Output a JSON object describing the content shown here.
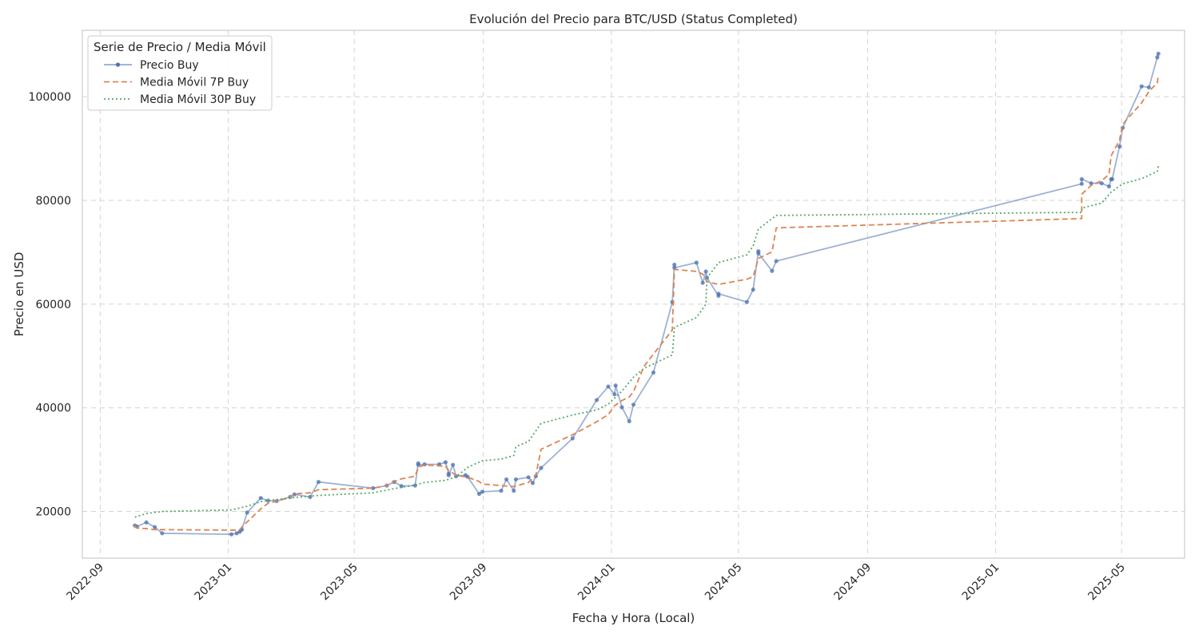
{
  "chart_data": {
    "type": "line",
    "title": "Evolución del Precio para BTC/USD (Status Completed)",
    "xlabel": "Fecha y Hora (Local)",
    "ylabel": "Precio en USD",
    "xlim": [
      "2022-08-15",
      "2025-06-30"
    ],
    "ylim": [
      11000,
      112800
    ],
    "x_ticks": [
      "2022-09",
      "2023-01",
      "2023-05",
      "2023-09",
      "2024-01",
      "2024-05",
      "2024-09",
      "2025-01",
      "2025-05"
    ],
    "y_ticks": [
      20000,
      40000,
      60000,
      80000,
      100000
    ],
    "grid": true,
    "legend": {
      "title": "Serie de Precio / Media Móvil",
      "position": "top-left"
    },
    "series": [
      {
        "name": "Precio Buy",
        "color": "#4c72b0",
        "style": "solid-markers",
        "points": [
          [
            "2022-10-04",
            17300
          ],
          [
            "2022-10-06",
            17100
          ],
          [
            "2022-10-15",
            17900
          ],
          [
            "2022-10-23",
            17000
          ],
          [
            "2022-10-30",
            15800
          ],
          [
            "2023-01-04",
            15600
          ],
          [
            "2023-01-09",
            15800
          ],
          [
            "2023-01-12",
            16100
          ],
          [
            "2023-01-14",
            16500
          ],
          [
            "2023-01-19",
            19800
          ],
          [
            "2023-02-01",
            22600
          ],
          [
            "2023-02-08",
            22100
          ],
          [
            "2023-02-16",
            22000
          ],
          [
            "2023-03-01",
            22800
          ],
          [
            "2023-03-05",
            23300
          ],
          [
            "2023-03-20",
            22800
          ],
          [
            "2023-03-28",
            25700
          ],
          [
            "2023-05-19",
            24500
          ],
          [
            "2023-06-01",
            25000
          ],
          [
            "2023-06-08",
            25700
          ],
          [
            "2023-06-15",
            24900
          ],
          [
            "2023-06-28",
            25000
          ],
          [
            "2023-07-01",
            29300
          ],
          [
            "2023-07-01",
            29000
          ],
          [
            "2023-07-07",
            29100
          ],
          [
            "2023-07-21",
            29100
          ],
          [
            "2023-07-27",
            29500
          ],
          [
            "2023-07-30",
            27300
          ],
          [
            "2023-07-30",
            27000
          ],
          [
            "2023-08-03",
            29000
          ],
          [
            "2023-08-06",
            26800
          ],
          [
            "2023-08-15",
            27000
          ],
          [
            "2023-08-17",
            26700
          ],
          [
            "2023-08-28",
            23400
          ],
          [
            "2023-08-31",
            23800
          ],
          [
            "2023-09-18",
            24000
          ],
          [
            "2023-09-23",
            26200
          ],
          [
            "2023-09-30",
            24000
          ],
          [
            "2023-10-02",
            26200
          ],
          [
            "2023-10-14",
            26600
          ],
          [
            "2023-10-18",
            25500
          ],
          [
            "2023-10-21",
            26800
          ],
          [
            "2023-10-26",
            28400
          ],
          [
            "2023-11-25",
            34100
          ],
          [
            "2023-12-18",
            41500
          ],
          [
            "2023-12-29",
            44100
          ],
          [
            "2024-01-04",
            42600
          ],
          [
            "2024-01-05",
            44300
          ],
          [
            "2024-01-11",
            40100
          ],
          [
            "2024-01-18",
            37400
          ],
          [
            "2024-01-22",
            40600
          ],
          [
            "2024-02-10",
            46800
          ],
          [
            "2024-02-28",
            60400
          ],
          [
            "2024-03-01",
            67600
          ],
          [
            "2024-03-01",
            67000
          ],
          [
            "2024-03-22",
            68000
          ],
          [
            "2024-03-28",
            64100
          ],
          [
            "2024-03-31",
            66300
          ],
          [
            "2024-04-01",
            65100
          ],
          [
            "2024-04-12",
            61600
          ],
          [
            "2024-04-12",
            62000
          ],
          [
            "2024-05-09",
            60400
          ],
          [
            "2024-05-15",
            62800
          ],
          [
            "2024-05-20",
            70200
          ],
          [
            "2024-05-20",
            69800
          ],
          [
            "2024-06-02",
            66400
          ],
          [
            "2024-06-06",
            68300
          ],
          [
            "2025-03-24",
            83200
          ],
          [
            "2025-03-24",
            84100
          ],
          [
            "2025-04-02",
            83300
          ],
          [
            "2025-04-12",
            83300
          ],
          [
            "2025-04-19",
            82700
          ],
          [
            "2025-04-21",
            84100
          ],
          [
            "2025-04-22",
            84100
          ],
          [
            "2025-04-29",
            90400
          ],
          [
            "2025-05-02",
            94000
          ],
          [
            "2025-05-20",
            102000
          ],
          [
            "2025-05-27",
            101800
          ],
          [
            "2025-06-04",
            107600
          ],
          [
            "2025-06-05",
            108300
          ]
        ]
      },
      {
        "name": "Media Móvil 7P Buy",
        "color": "#dd8452",
        "style": "dashed",
        "points": [
          [
            "2022-10-04",
            17300
          ],
          [
            "2022-10-06",
            16800
          ],
          [
            "2022-10-15",
            16700
          ],
          [
            "2022-10-23",
            16500
          ],
          [
            "2022-10-30",
            16500
          ],
          [
            "2023-01-04",
            16400
          ],
          [
            "2023-01-09",
            16400
          ],
          [
            "2023-01-12",
            16500
          ],
          [
            "2023-01-14",
            17000
          ],
          [
            "2023-01-19",
            18000
          ],
          [
            "2023-02-01",
            20500
          ],
          [
            "2023-02-08",
            21600
          ],
          [
            "2023-02-16",
            22000
          ],
          [
            "2023-03-01",
            22700
          ],
          [
            "2023-03-05",
            23400
          ],
          [
            "2023-03-20",
            23600
          ],
          [
            "2023-03-28",
            24200
          ],
          [
            "2023-05-19",
            24500
          ],
          [
            "2023-06-01",
            25000
          ],
          [
            "2023-06-08",
            25800
          ],
          [
            "2023-06-15",
            26300
          ],
          [
            "2023-06-28",
            26800
          ],
          [
            "2023-07-01",
            28500
          ],
          [
            "2023-07-07",
            29000
          ],
          [
            "2023-07-21",
            28800
          ],
          [
            "2023-07-27",
            28700
          ],
          [
            "2023-07-30",
            27900
          ],
          [
            "2023-08-06",
            27000
          ],
          [
            "2023-08-17",
            26600
          ],
          [
            "2023-08-28",
            25800
          ],
          [
            "2023-08-31",
            25300
          ],
          [
            "2023-09-18",
            25000
          ],
          [
            "2023-09-30",
            24800
          ],
          [
            "2023-10-14",
            25600
          ],
          [
            "2023-10-21",
            27000
          ],
          [
            "2023-10-26",
            32000
          ],
          [
            "2023-11-25",
            34800
          ],
          [
            "2023-12-18",
            37300
          ],
          [
            "2023-12-29",
            38700
          ],
          [
            "2024-01-04",
            40400
          ],
          [
            "2024-01-11",
            41400
          ],
          [
            "2024-01-18",
            42100
          ],
          [
            "2024-01-22",
            43100
          ],
          [
            "2024-02-01",
            48000
          ],
          [
            "2024-02-28",
            55000
          ],
          [
            "2024-03-01",
            66700
          ],
          [
            "2024-03-22",
            66300
          ],
          [
            "2024-03-28",
            65800
          ],
          [
            "2024-04-01",
            64300
          ],
          [
            "2024-04-12",
            63800
          ],
          [
            "2024-05-09",
            64800
          ],
          [
            "2024-05-15",
            65300
          ],
          [
            "2024-05-20",
            68800
          ],
          [
            "2024-06-02",
            70100
          ],
          [
            "2024-06-06",
            74700
          ],
          [
            "2025-03-24",
            76500
          ],
          [
            "2025-03-24",
            81200
          ],
          [
            "2025-04-02",
            82900
          ],
          [
            "2025-04-12",
            83800
          ],
          [
            "2025-04-19",
            85000
          ],
          [
            "2025-04-21",
            88600
          ],
          [
            "2025-04-29",
            91600
          ],
          [
            "2025-05-02",
            94700
          ],
          [
            "2025-05-20",
            98800
          ],
          [
            "2025-05-27",
            101000
          ],
          [
            "2025-06-04",
            102700
          ],
          [
            "2025-06-05",
            104200
          ]
        ]
      },
      {
        "name": "Media Móvil 30P Buy",
        "color": "#55a868",
        "style": "dotted",
        "points": [
          [
            "2022-10-04",
            18900
          ],
          [
            "2022-10-15",
            19600
          ],
          [
            "2022-10-30",
            20000
          ],
          [
            "2023-01-04",
            20300
          ],
          [
            "2023-01-19",
            21000
          ],
          [
            "2023-02-01",
            21900
          ],
          [
            "2023-02-16",
            22300
          ],
          [
            "2023-03-05",
            22700
          ],
          [
            "2023-03-28",
            23100
          ],
          [
            "2023-05-19",
            23600
          ],
          [
            "2023-06-08",
            24400
          ],
          [
            "2023-06-28",
            25100
          ],
          [
            "2023-07-07",
            25600
          ],
          [
            "2023-07-27",
            26000
          ],
          [
            "2023-08-06",
            26700
          ],
          [
            "2023-08-17",
            28500
          ],
          [
            "2023-08-31",
            29800
          ],
          [
            "2023-09-18",
            30100
          ],
          [
            "2023-09-30",
            30800
          ],
          [
            "2023-10-02",
            32500
          ],
          [
            "2023-10-14",
            33500
          ],
          [
            "2023-10-26",
            37000
          ],
          [
            "2023-11-25",
            38600
          ],
          [
            "2023-12-18",
            39600
          ],
          [
            "2023-12-29",
            40700
          ],
          [
            "2024-01-11",
            43200
          ],
          [
            "2024-01-22",
            45900
          ],
          [
            "2024-02-01",
            47600
          ],
          [
            "2024-02-28",
            50200
          ],
          [
            "2024-03-01",
            55500
          ],
          [
            "2024-03-22",
            57400
          ],
          [
            "2024-03-31",
            60000
          ],
          [
            "2024-04-01",
            65000
          ],
          [
            "2024-04-12",
            68000
          ],
          [
            "2024-05-09",
            69500
          ],
          [
            "2024-05-15",
            71200
          ],
          [
            "2024-05-20",
            74500
          ],
          [
            "2024-06-02",
            76500
          ],
          [
            "2024-06-06",
            77100
          ],
          [
            "2025-03-24",
            77700
          ],
          [
            "2025-03-24",
            78500
          ],
          [
            "2025-04-12",
            79500
          ],
          [
            "2025-04-21",
            81600
          ],
          [
            "2025-05-02",
            83200
          ],
          [
            "2025-05-20",
            84200
          ],
          [
            "2025-06-04",
            85600
          ],
          [
            "2025-06-05",
            86600
          ]
        ]
      }
    ]
  }
}
